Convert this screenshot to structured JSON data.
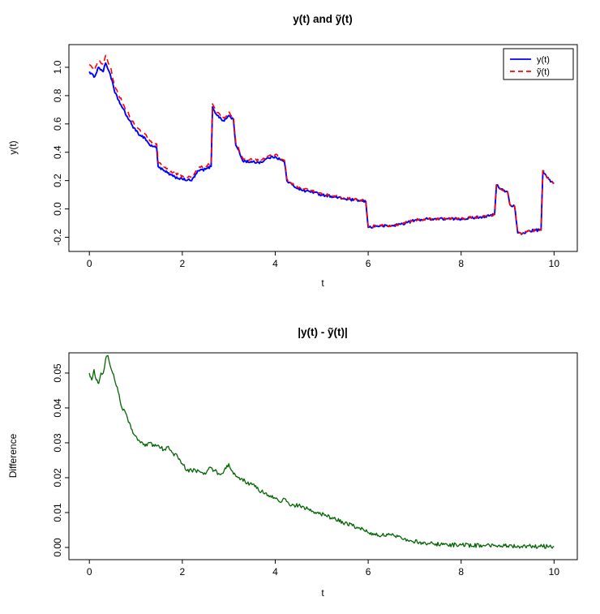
{
  "page": {
    "background_color": "#ffffff"
  },
  "chart_data": [
    {
      "type": "line",
      "title": "y(t) and ỹ(t)",
      "xlabel": "t",
      "ylabel": "y(t)",
      "xlim": [
        -0.44,
        10.5
      ],
      "ylim": [
        -0.3,
        1.16
      ],
      "xticks": [
        0,
        2,
        4,
        6,
        8,
        10
      ],
      "yticks": [
        -0.2,
        0.0,
        0.2,
        0.4,
        0.6,
        0.8,
        1.0
      ],
      "xtick_labels": [
        "0",
        "2",
        "4",
        "6",
        "8",
        "10"
      ],
      "ytick_labels": [
        "-0.2",
        "0.0",
        "0.2",
        "0.4",
        "0.6",
        "0.8",
        "1.0"
      ],
      "grid": false,
      "legend_position": "top-right",
      "series": [
        {
          "name": "y(t)",
          "color": "#0000FF",
          "style": "solid",
          "lwd": 1.9,
          "noise": 0.009,
          "points": [
            [
              0,
              0.97
            ],
            [
              0.1,
              0.93
            ],
            [
              0.2,
              1.0
            ],
            [
              0.3,
              0.97
            ],
            [
              0.35,
              1.03
            ],
            [
              0.45,
              0.95
            ],
            [
              0.55,
              0.82
            ],
            [
              0.7,
              0.72
            ],
            [
              0.85,
              0.63
            ],
            [
              1.0,
              0.55
            ],
            [
              1.1,
              0.52
            ],
            [
              1.2,
              0.5
            ],
            [
              1.3,
              0.45
            ],
            [
              1.4,
              0.44
            ],
            [
              1.45,
              0.43
            ],
            [
              1.48,
              0.3
            ],
            [
              1.6,
              0.27
            ],
            [
              1.8,
              0.23
            ],
            [
              2.0,
              0.21
            ],
            [
              2.2,
              0.2
            ],
            [
              2.35,
              0.27
            ],
            [
              2.5,
              0.28
            ],
            [
              2.62,
              0.3
            ],
            [
              2.65,
              0.72
            ],
            [
              2.75,
              0.66
            ],
            [
              2.9,
              0.62
            ],
            [
              3.0,
              0.66
            ],
            [
              3.1,
              0.63
            ],
            [
              3.15,
              0.45
            ],
            [
              3.2,
              0.42
            ],
            [
              3.3,
              0.34
            ],
            [
              3.5,
              0.33
            ],
            [
              3.7,
              0.33
            ],
            [
              3.85,
              0.36
            ],
            [
              4.0,
              0.37
            ],
            [
              4.1,
              0.35
            ],
            [
              4.2,
              0.33
            ],
            [
              4.25,
              0.2
            ],
            [
              4.4,
              0.16
            ],
            [
              4.6,
              0.13
            ],
            [
              4.8,
              0.12
            ],
            [
              5.0,
              0.1
            ],
            [
              5.2,
              0.09
            ],
            [
              5.5,
              0.07
            ],
            [
              5.8,
              0.06
            ],
            [
              5.95,
              0.05
            ],
            [
              6.0,
              -0.13
            ],
            [
              6.2,
              -0.12
            ],
            [
              6.5,
              -0.12
            ],
            [
              6.8,
              -0.1
            ],
            [
              7.0,
              -0.08
            ],
            [
              7.3,
              -0.07
            ],
            [
              7.6,
              -0.07
            ],
            [
              8.0,
              -0.07
            ],
            [
              8.3,
              -0.06
            ],
            [
              8.6,
              -0.05
            ],
            [
              8.72,
              -0.04
            ],
            [
              8.76,
              0.17
            ],
            [
              8.85,
              0.14
            ],
            [
              9.0,
              0.12
            ],
            [
              9.05,
              0.03
            ],
            [
              9.15,
              0.02
            ],
            [
              9.22,
              -0.17
            ],
            [
              9.3,
              -0.18
            ],
            [
              9.4,
              -0.16
            ],
            [
              9.6,
              -0.15
            ],
            [
              9.72,
              -0.15
            ],
            [
              9.76,
              0.27
            ],
            [
              9.85,
              0.22
            ],
            [
              10,
              0.18
            ]
          ]
        },
        {
          "name": "ỹ(t)",
          "color": "#FF0000",
          "style": "dashed",
          "lwd": 1.6,
          "noise": 0.009,
          "points": [
            [
              0,
              1.02
            ],
            [
              0.1,
              0.978
            ],
            [
              0.2,
              1.047
            ],
            [
              0.3,
              1.02
            ],
            [
              0.35,
              1.084
            ],
            [
              0.45,
              1.002
            ],
            [
              0.55,
              0.866
            ],
            [
              0.7,
              0.76
            ],
            [
              0.85,
              0.666
            ],
            [
              1.0,
              0.582
            ],
            [
              1.1,
              0.55
            ],
            [
              1.2,
              0.529
            ],
            [
              1.3,
              0.48
            ],
            [
              1.4,
              0.469
            ],
            [
              1.45,
              0.459
            ],
            [
              1.48,
              0.329
            ],
            [
              1.6,
              0.298
            ],
            [
              1.8,
              0.257
            ],
            [
              2.0,
              0.234
            ],
            [
              2.2,
              0.222
            ],
            [
              2.35,
              0.292
            ],
            [
              2.5,
              0.301
            ],
            [
              2.62,
              0.322
            ],
            [
              2.65,
              0.742
            ],
            [
              2.75,
              0.681
            ],
            [
              2.9,
              0.642
            ],
            [
              3.0,
              0.684
            ],
            [
              3.1,
              0.651
            ],
            [
              3.15,
              0.47
            ],
            [
              3.2,
              0.44
            ],
            [
              3.3,
              0.359
            ],
            [
              3.5,
              0.348
            ],
            [
              3.7,
              0.346
            ],
            [
              3.85,
              0.375
            ],
            [
              4.0,
              0.384
            ],
            [
              4.1,
              0.363
            ],
            [
              4.2,
              0.343
            ],
            [
              4.25,
              0.213
            ],
            [
              4.4,
              0.172
            ],
            [
              4.6,
              0.141
            ],
            [
              4.8,
              0.131
            ],
            [
              5.0,
              0.109
            ],
            [
              5.2,
              0.099
            ],
            [
              5.5,
              0.077
            ],
            [
              5.8,
              0.065
            ],
            [
              5.95,
              0.055
            ],
            [
              6.0,
              -0.126
            ],
            [
              6.2,
              -0.116
            ],
            [
              6.5,
              -0.117
            ],
            [
              6.8,
              -0.097
            ],
            [
              7.0,
              -0.078
            ],
            [
              7.3,
              -0.069
            ],
            [
              7.6,
              -0.069
            ],
            [
              8.0,
              -0.069
            ],
            [
              8.3,
              -0.059
            ],
            [
              8.6,
              -0.05
            ],
            [
              8.72,
              -0.04
            ],
            [
              8.76,
              0.17
            ],
            [
              8.85,
              0.14
            ],
            [
              9.0,
              0.12
            ],
            [
              9.05,
              0.03
            ],
            [
              9.15,
              0.02
            ],
            [
              9.22,
              -0.17
            ],
            [
              9.3,
              -0.179
            ],
            [
              9.4,
              -0.16
            ],
            [
              9.6,
              -0.15
            ],
            [
              9.72,
              -0.15
            ],
            [
              9.76,
              0.27
            ],
            [
              9.85,
              0.22
            ],
            [
              10,
              0.18
            ]
          ]
        }
      ]
    },
    {
      "type": "line",
      "title": "|y(t) - ỹ(t)|",
      "xlabel": "t",
      "ylabel": "Difference",
      "xlim": [
        -0.44,
        10.5
      ],
      "ylim": [
        -0.0035,
        0.0558
      ],
      "xticks": [
        0,
        2,
        4,
        6,
        8,
        10
      ],
      "yticks": [
        0.0,
        0.01,
        0.02,
        0.03,
        0.04,
        0.05
      ],
      "xtick_labels": [
        "0",
        "2",
        "4",
        "6",
        "8",
        "10"
      ],
      "ytick_labels": [
        "0.00",
        "0.01",
        "0.02",
        "0.03",
        "0.04",
        "0.05"
      ],
      "grid": false,
      "legend_position": null,
      "series": [
        {
          "name": "|y(t) - ỹ(t)|",
          "color": "#006400",
          "style": "solid",
          "lwd": 1.3,
          "noise": 0.0006,
          "points": [
            [
              0,
              0.05
            ],
            [
              0.05,
              0.048
            ],
            [
              0.1,
              0.051
            ],
            [
              0.15,
              0.048
            ],
            [
              0.2,
              0.047
            ],
            [
              0.25,
              0.05
            ],
            [
              0.3,
              0.05
            ],
            [
              0.35,
              0.054
            ],
            [
              0.4,
              0.055
            ],
            [
              0.45,
              0.052
            ],
            [
              0.5,
              0.05
            ],
            [
              0.6,
              0.046
            ],
            [
              0.7,
              0.04
            ],
            [
              0.8,
              0.038
            ],
            [
              0.9,
              0.034
            ],
            [
              1.0,
              0.032
            ],
            [
              1.1,
              0.03
            ],
            [
              1.2,
              0.029
            ],
            [
              1.3,
              0.03
            ],
            [
              1.4,
              0.029
            ],
            [
              1.5,
              0.029
            ],
            [
              1.6,
              0.028
            ],
            [
              1.7,
              0.029
            ],
            [
              1.8,
              0.027
            ],
            [
              1.9,
              0.026
            ],
            [
              2.0,
              0.024
            ],
            [
              2.1,
              0.022
            ],
            [
              2.2,
              0.022
            ],
            [
              2.35,
              0.022
            ],
            [
              2.5,
              0.021
            ],
            [
              2.6,
              0.023
            ],
            [
              2.7,
              0.022
            ],
            [
              2.8,
              0.021
            ],
            [
              2.9,
              0.022
            ],
            [
              3.0,
              0.024
            ],
            [
              3.1,
              0.021
            ],
            [
              3.2,
              0.02
            ],
            [
              3.35,
              0.019
            ],
            [
              3.5,
              0.018
            ],
            [
              3.7,
              0.016
            ],
            [
              3.85,
              0.015
            ],
            [
              4.0,
              0.014
            ],
            [
              4.1,
              0.013
            ],
            [
              4.2,
              0.014
            ],
            [
              4.35,
              0.012
            ],
            [
              4.5,
              0.012
            ],
            [
              4.7,
              0.011
            ],
            [
              4.9,
              0.01
            ],
            [
              5.1,
              0.009
            ],
            [
              5.3,
              0.008
            ],
            [
              5.5,
              0.007
            ],
            [
              5.7,
              0.006
            ],
            [
              5.9,
              0.005
            ],
            [
              6.1,
              0.004
            ],
            [
              6.3,
              0.0035
            ],
            [
              6.5,
              0.0035
            ],
            [
              6.7,
              0.003
            ],
            [
              6.9,
              0.002
            ],
            [
              7.1,
              0.0015
            ],
            [
              7.4,
              0.001
            ],
            [
              7.7,
              0.0008
            ],
            [
              8.0,
              0.0007
            ],
            [
              8.5,
              0.0005
            ],
            [
              9.0,
              0.0004
            ],
            [
              9.5,
              0.0003
            ],
            [
              10,
              0.0003
            ]
          ]
        }
      ]
    }
  ]
}
